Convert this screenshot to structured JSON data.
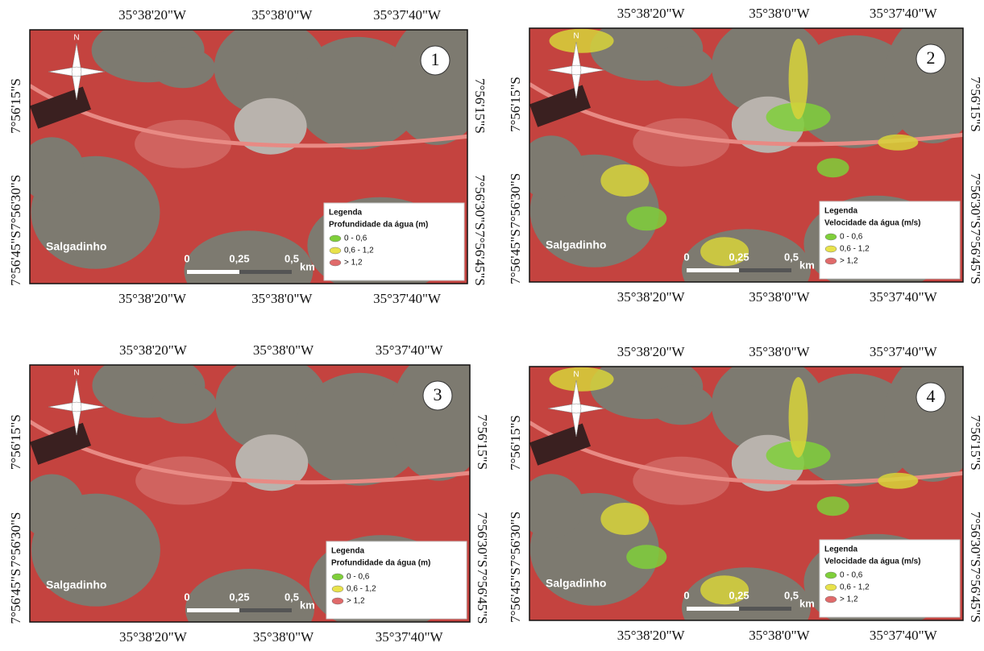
{
  "panels": [
    {
      "number": "1",
      "x_labels_top": [
        "35°38'20\"W",
        "35°38'0\"W",
        "35°37'40\"W"
      ],
      "x_labels_bottom": [
        "35°38'20\"W",
        "35°38'0\"W",
        "35°37'40\"W"
      ],
      "y_labels_left": [
        "7°56'15\"S",
        "7°56'30\"S",
        "7°56'45\"S"
      ],
      "y_labels_right": [
        "7°56'15\"S",
        "7°56'30\"S",
        "7°56'45\"S"
      ],
      "north": "N",
      "place": "Salgadinho",
      "legend": {
        "title": "Legenda",
        "subtitle": "Profundidade da água (m)",
        "items": [
          "0 - 0,6",
          "0,6 - 1,2",
          "> 1,2"
        ]
      },
      "scale": [
        "0",
        "0,25",
        "0,5",
        "km"
      ]
    },
    {
      "number": "2",
      "x_labels_top": [
        "35°38'20\"W",
        "35°38'0\"W",
        "35°37'40\"W"
      ],
      "x_labels_bottom": [
        "35°38'20\"W",
        "35°38'0\"W",
        "35°37'40\"W"
      ],
      "y_labels_left": [
        "7°56'15\"S",
        "7°56'30\"S",
        "7°56'45\"S"
      ],
      "y_labels_right": [
        "7°56'15\"S",
        "7°56'30\"S",
        "7°56'45\"S"
      ],
      "north": "N",
      "place": "Salgadinho",
      "legend": {
        "title": "Legenda",
        "subtitle": "Velocidade da água (m/s)",
        "items": [
          "0 - 0,6",
          "0,6 - 1,2",
          "> 1,2"
        ]
      },
      "scale": [
        "0",
        "0,25",
        "0,5",
        "km"
      ]
    },
    {
      "number": "3",
      "x_labels_top": [
        "35°38'20\"W",
        "35°38'0\"W",
        "35°37'40\"W"
      ],
      "x_labels_bottom": [
        "35°38'20\"W",
        "35°38'0\"W",
        "35°37'40\"W"
      ],
      "y_labels_left": [
        "7°56'15\"S",
        "7°56'30\"S",
        "7°56'45\"S"
      ],
      "y_labels_right": [
        "7°56'15\"S",
        "7°56'30\"S",
        "7°56'45\"S"
      ],
      "north": "N",
      "place": "Salgadinho",
      "legend": {
        "title": "Legenda",
        "subtitle": "Profundidade da água (m)",
        "items": [
          "0 - 0,6",
          "0,6 - 1,2",
          "> 1,2"
        ]
      },
      "scale": [
        "0",
        "0,25",
        "0,5",
        "km"
      ]
    },
    {
      "number": "4",
      "x_labels_top": [
        "35°38'20\"W",
        "35°38'0\"W",
        "35°37'40\"W"
      ],
      "x_labels_bottom": [
        "35°38'20\"W",
        "35°38'0\"W",
        "35°37'40\"W"
      ],
      "y_labels_left": [
        "7°56'15\"S",
        "7°56'30\"S",
        "7°56'45\"S"
      ],
      "y_labels_right": [
        "7°56'15\"S",
        "7°56'30\"S",
        "7°56'45\"S"
      ],
      "north": "N",
      "place": "Salgadinho",
      "legend": {
        "title": "Legenda",
        "subtitle": "Velocidade da água (m/s)",
        "items": [
          "0 - 0,6",
          "0,6 - 1,2",
          "> 1,2"
        ]
      },
      "scale": [
        "0",
        "0,25",
        "0,5",
        "km"
      ]
    }
  ]
}
